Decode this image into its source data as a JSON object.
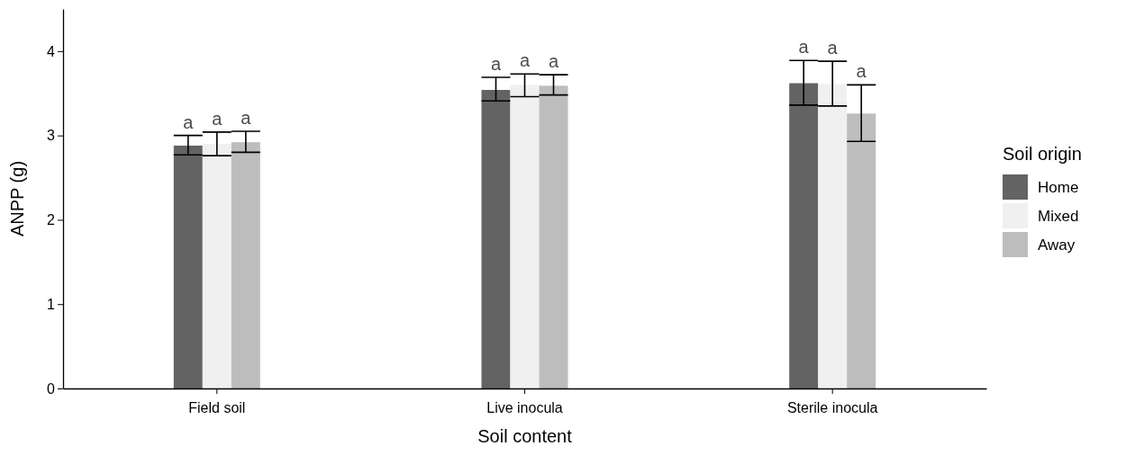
{
  "chart_data": {
    "type": "bar",
    "xlabel": "Soil content",
    "ylabel": "ANPP (g)",
    "legend_title": "Soil origin",
    "legend": "right",
    "categories": [
      "Field soil",
      "Live inocula",
      "Sterile inocula"
    ],
    "ylim": [
      0,
      4.5
    ],
    "yticks": [
      0,
      1,
      2,
      3,
      4
    ],
    "grid": false,
    "series": [
      {
        "name": "Home",
        "color": "#636363",
        "values": [
          2.88,
          3.54,
          3.62
        ],
        "errors": [
          [
            2.77,
            3.0
          ],
          [
            3.41,
            3.69
          ],
          [
            3.36,
            3.89
          ]
        ],
        "value_labels": [
          "a",
          "a",
          "a"
        ]
      },
      {
        "name": "Mixed",
        "color": "#f0f0f0",
        "values": [
          2.9,
          3.6,
          3.61
        ],
        "errors": [
          [
            2.76,
            3.04
          ],
          [
            3.46,
            3.73
          ],
          [
            3.35,
            3.88
          ]
        ],
        "value_labels": [
          "a",
          "a",
          "a"
        ]
      },
      {
        "name": "Away",
        "color": "#bdbdbd",
        "values": [
          2.92,
          3.59,
          3.26
        ],
        "errors": [
          [
            2.8,
            3.05
          ],
          [
            3.48,
            3.72
          ],
          [
            2.93,
            3.6
          ]
        ],
        "value_labels": [
          "a",
          "a",
          "a"
        ]
      }
    ]
  }
}
